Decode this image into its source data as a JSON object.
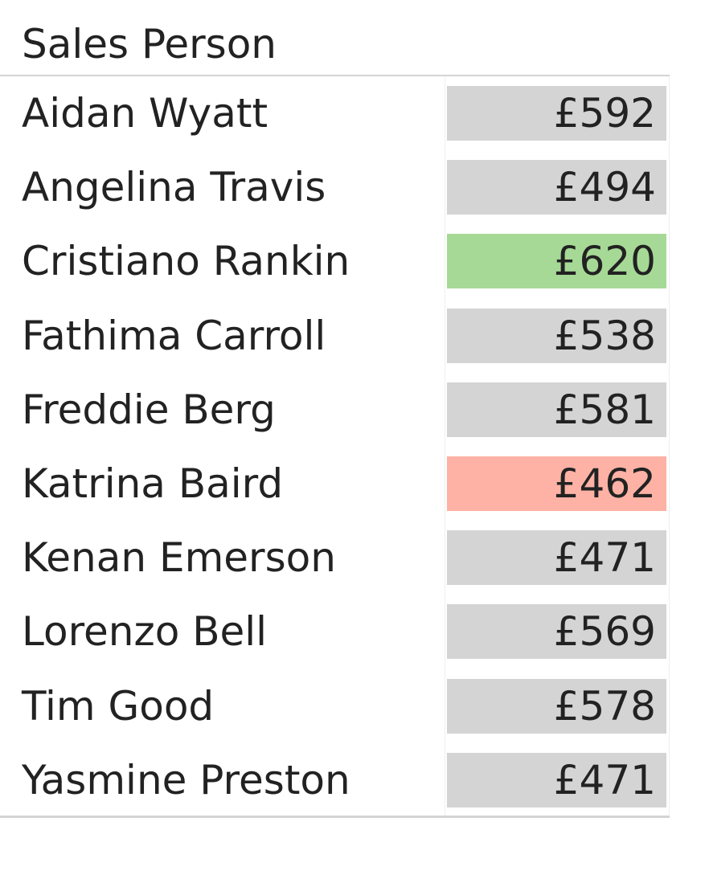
{
  "chart_data": {
    "type": "table",
    "column_header": "Sales Person",
    "colors": {
      "default": "#d4d4d4",
      "highest": "#a6d996",
      "lowest": "#fdb2a5"
    },
    "rows": [
      {
        "name": "Aidan Wyatt",
        "value": 592,
        "display": "£592",
        "highlight": "default"
      },
      {
        "name": "Angelina Travis",
        "value": 494,
        "display": "£494",
        "highlight": "default"
      },
      {
        "name": "Cristiano Rankin",
        "value": 620,
        "display": "£620",
        "highlight": "highest"
      },
      {
        "name": "Fathima Carroll",
        "value": 538,
        "display": "£538",
        "highlight": "default"
      },
      {
        "name": "Freddie Berg",
        "value": 581,
        "display": "£581",
        "highlight": "default"
      },
      {
        "name": "Katrina Baird",
        "value": 462,
        "display": "£462",
        "highlight": "lowest"
      },
      {
        "name": "Kenan Emerson",
        "value": 471,
        "display": "£471",
        "highlight": "default"
      },
      {
        "name": "Lorenzo Bell",
        "value": 569,
        "display": "£569",
        "highlight": "default"
      },
      {
        "name": "Tim Good",
        "value": 578,
        "display": "£578",
        "highlight": "default"
      },
      {
        "name": "Yasmine Preston",
        "value": 471,
        "display": "£471",
        "highlight": "default"
      }
    ]
  }
}
